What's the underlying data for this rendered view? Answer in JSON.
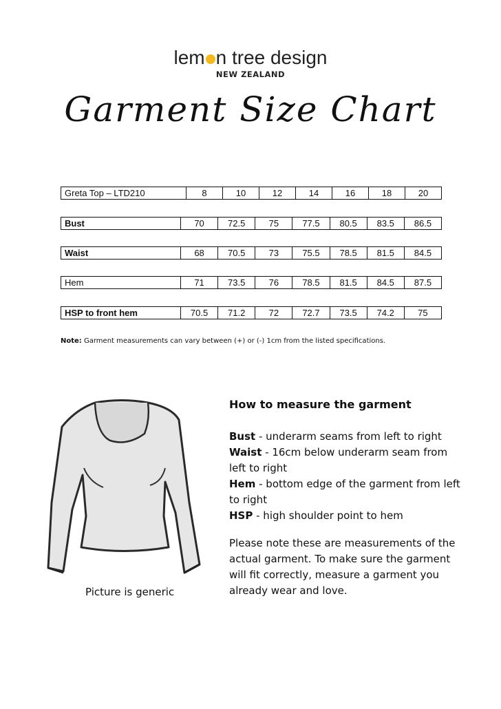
{
  "brand": {
    "name_part1": "lem",
    "name_part2": "n tree design",
    "logo_dot_color": "#f6b81f",
    "subtitle": "NEW ZEALAND"
  },
  "title": "Garment Size Chart",
  "table": {
    "product": "Greta Top – LTD210",
    "sizes": [
      "8",
      "10",
      "12",
      "14",
      "16",
      "18",
      "20"
    ],
    "rows": [
      {
        "label": "Bust",
        "values": [
          "70",
          "72.5",
          "75",
          "77.5",
          "80.5",
          "83.5",
          "86.5"
        ]
      },
      {
        "label": "Waist",
        "values": [
          "68",
          "70.5",
          "73",
          "75.5",
          "78.5",
          "81.5",
          "84.5"
        ]
      },
      {
        "label": "Hem",
        "values": [
          "71",
          "73.5",
          "76",
          "78.5",
          "81.5",
          "84.5",
          "87.5"
        ]
      },
      {
        "label": "HSP to front hem",
        "values": [
          "70.5",
          "71.2",
          "72",
          "72.7",
          "73.5",
          "74.2",
          "75"
        ]
      }
    ]
  },
  "note": {
    "label": "Note:",
    "text": " Garment measurements can vary between (+) or (-) 1cm from the listed specifications."
  },
  "image_caption": "Picture is generic",
  "howto": {
    "heading": "How to measure the garment",
    "items": [
      {
        "term": "Bust",
        "desc": " - underarm seams from left to right"
      },
      {
        "term": "Waist",
        "desc": " - 16cm below underarm seam from left to right"
      },
      {
        "term": "Hem",
        "desc": " - bottom edge of the garment from left to right"
      },
      {
        "term": "HSP",
        "desc": " - high shoulder point to hem"
      }
    ],
    "paragraph": "Please note these are measurements of the actual garment. To make sure the garment will fit correctly, measure a garment you already wear and love."
  }
}
